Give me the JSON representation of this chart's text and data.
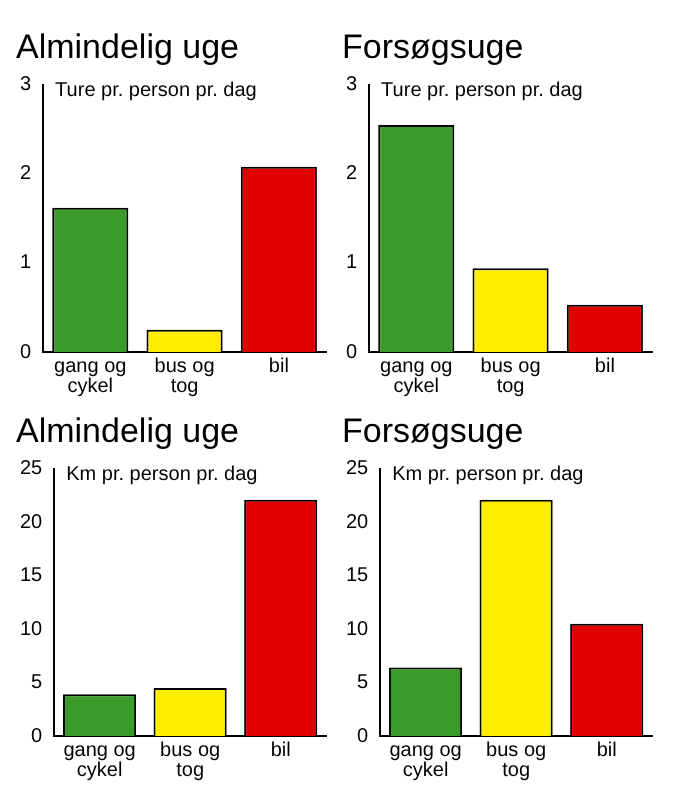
{
  "chart_data": [
    {
      "type": "bar",
      "title": "Almindelig uge",
      "ylabel": "Ture pr. person pr. dag",
      "categories": [
        "gang og cykel",
        "bus og tog",
        "bil"
      ],
      "values": [
        1.62,
        0.25,
        2.08
      ],
      "colors": [
        "#3a9a2a",
        "#ffee00",
        "#e00000"
      ],
      "ylim": [
        0,
        3
      ],
      "yticks": [
        0,
        1,
        2,
        3
      ],
      "grid": false
    },
    {
      "type": "bar",
      "title": "Forsøgsuge",
      "ylabel": "Ture pr. person pr. dag",
      "categories": [
        "gang og cykel",
        "bus og tog",
        "bil"
      ],
      "values": [
        2.55,
        0.94,
        0.53
      ],
      "colors": [
        "#3a9a2a",
        "#ffee00",
        "#e00000"
      ],
      "ylim": [
        0,
        3
      ],
      "yticks": [
        0,
        1,
        2,
        3
      ],
      "grid": false
    },
    {
      "type": "bar",
      "title": "Almindelig uge",
      "ylabel": "Km pr. person pr. dag",
      "categories": [
        "gang og cykel",
        "bus og tog",
        "bil"
      ],
      "values": [
        3.9,
        4.5,
        22.1
      ],
      "colors": [
        "#3a9a2a",
        "#ffee00",
        "#e00000"
      ],
      "ylim": [
        0,
        25
      ],
      "yticks": [
        0,
        5,
        10,
        15,
        20,
        25
      ],
      "grid": false
    },
    {
      "type": "bar",
      "title": "Forsøgsuge",
      "ylabel": "Km pr. person pr. dag",
      "categories": [
        "gang og cykel",
        "bus og tog",
        "bil"
      ],
      "values": [
        6.4,
        22.1,
        10.5
      ],
      "colors": [
        "#3a9a2a",
        "#ffee00",
        "#e00000"
      ],
      "ylim": [
        0,
        25
      ],
      "yticks": [
        0,
        5,
        10,
        15,
        20,
        25
      ],
      "grid": false
    }
  ]
}
